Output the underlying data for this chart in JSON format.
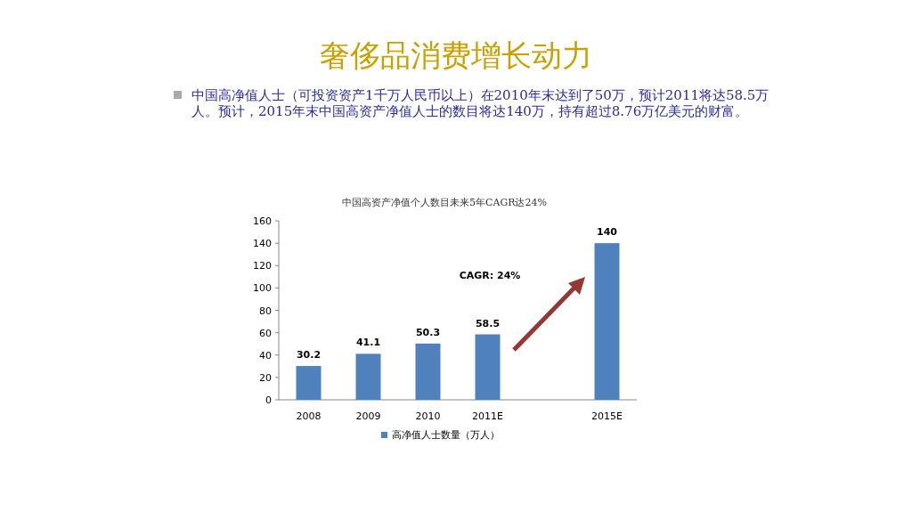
{
  "chart_data": {
    "type": "bar",
    "title": "奢侈品消费增长动力",
    "subtitle": "中国高资产净值个人数目未来5年CAGR达24%",
    "annotations": [
      "中国高净值人士（可投资资产1千万人民币以上）在2010年末达到了50万，预计2011将达58.5万人。预计，2015年末中国高资产净值人士的数目将达140万，持有超过8.76万亿美元的财富。",
      "CAGR: 24%"
    ],
    "categories": [
      "2008",
      "2009",
      "2010",
      "2011E",
      null,
      "2015E"
    ],
    "series": [
      {
        "name": "高净值人士数量（万人）",
        "color": "#4f81bd",
        "values": [
          30.2,
          41.1,
          50.3,
          58.5,
          null,
          140
        ]
      }
    ],
    "ylim": [
      0,
      160
    ],
    "yticks": [
      0,
      20,
      40,
      60,
      80,
      100,
      120,
      140,
      160
    ],
    "data_labels": true,
    "legend": "bottom"
  }
}
